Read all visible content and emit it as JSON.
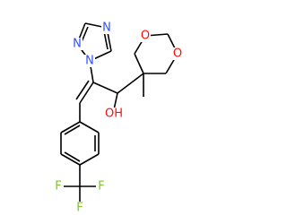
{
  "atoms": [
    "N",
    "N",
    "N",
    "O",
    "O",
    "OH",
    "F",
    "F",
    "F"
  ]
}
